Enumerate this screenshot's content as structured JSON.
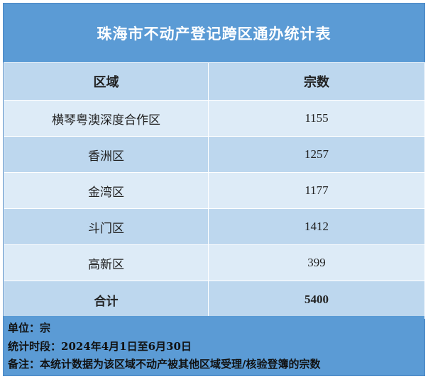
{
  "title": "珠海市不动产登记跨区通办统计表",
  "table": {
    "headers": [
      "区域",
      "宗数"
    ],
    "rows": [
      {
        "region": "横琴粤澳深度合作区",
        "count": "1155"
      },
      {
        "region": "香洲区",
        "count": "1257"
      },
      {
        "region": "金湾区",
        "count": "1177"
      },
      {
        "region": "斗门区",
        "count": "1412"
      },
      {
        "region": "高新区",
        "count": "399"
      }
    ],
    "total": {
      "label": "合计",
      "count": "5400"
    }
  },
  "notes": {
    "unit": "单位：宗",
    "period": "统计时段：2024年4月1日至6月30日",
    "remark": "备注：本统计数据为该区域不动产被其他区域受理/核验登簿的宗数"
  },
  "colors": {
    "header_blue": "#5b9bd5",
    "row_light": "#ddebf7",
    "row_dark": "#bdd7ee"
  }
}
